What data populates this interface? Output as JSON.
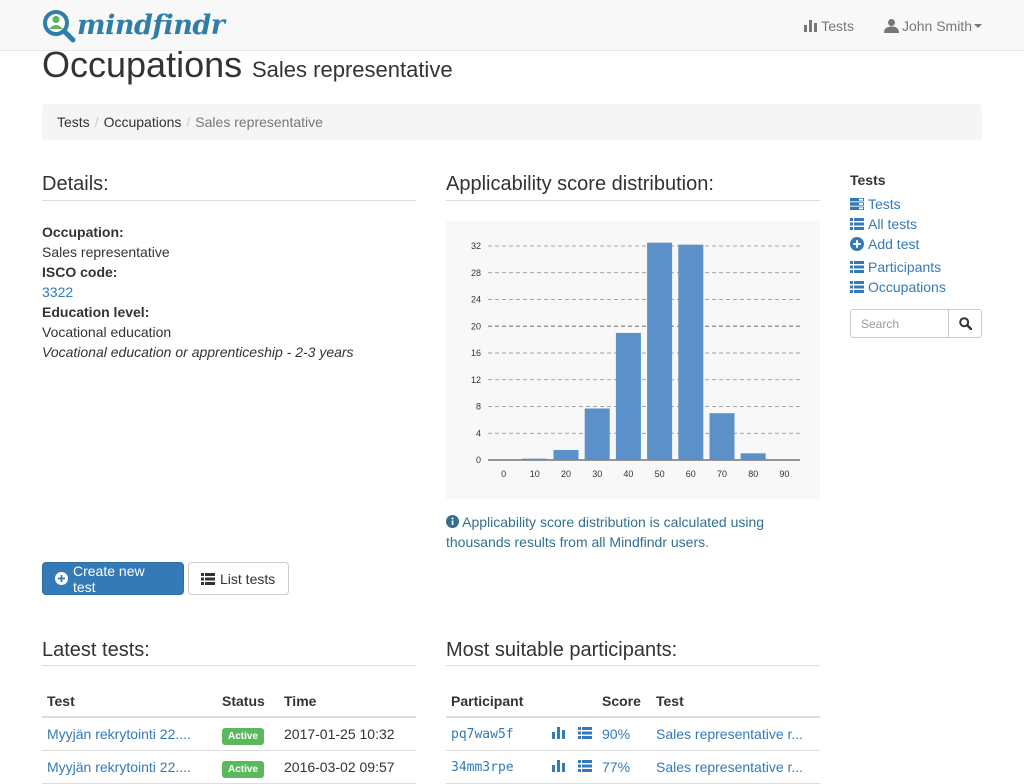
{
  "brand": {
    "name": "mindfindr"
  },
  "nav": {
    "tests_label": "Tests",
    "user_label": "John Smith"
  },
  "header": {
    "title": "Occupations",
    "subtitle": "Sales representative"
  },
  "breadcrumb": [
    "Tests",
    "Occupations",
    "Sales representative"
  ],
  "details": {
    "heading": "Details:",
    "occupation_label": "Occupation:",
    "occupation_value": "Sales representative",
    "isco_label": "ISCO code:",
    "isco_value": "3322",
    "education_label": "Education level:",
    "education_value": "Vocational education",
    "education_note": "Vocational education or apprenticeship - 2-3 years"
  },
  "chart_section": {
    "heading": "Applicability score distribution:",
    "info": "Applicability score distribution is calculated using thousands results from all Mindfindr users."
  },
  "chart_data": {
    "type": "bar",
    "categories": [
      "0",
      "10",
      "20",
      "30",
      "40",
      "50",
      "60",
      "70",
      "80",
      "90"
    ],
    "values": [
      0,
      0.2,
      1.5,
      7.7,
      19,
      32.5,
      32.2,
      7,
      1,
      0
    ],
    "ylim": [
      0,
      32
    ],
    "yticks": [
      0,
      4,
      8,
      12,
      16,
      20,
      24,
      28,
      32
    ],
    "bar_color": "#5b91c8",
    "grid": true
  },
  "buttons": {
    "create_label": "Create new test",
    "list_label": "List tests"
  },
  "sidebar": {
    "title": "Tests",
    "items": [
      {
        "label": "Tests",
        "icon": "tasks-icon"
      },
      {
        "label": "All tests",
        "icon": "list-icon"
      },
      {
        "label": "Add test",
        "icon": "plus-circle-icon"
      },
      {
        "label": "Participants",
        "icon": "list-icon"
      },
      {
        "label": "Occupations",
        "icon": "list-icon"
      }
    ],
    "search_placeholder": "Search"
  },
  "latest_tests": {
    "heading": "Latest tests:",
    "columns": [
      "Test",
      "Status",
      "Time"
    ],
    "rows": [
      {
        "test": "Myyjän rekrytointi 22....",
        "status": "Active",
        "time": "2017-01-25 10:32"
      },
      {
        "test": "Myyjän rekrytointi 22....",
        "status": "Active",
        "time": "2016-03-02 09:57"
      }
    ]
  },
  "participants": {
    "heading": "Most suitable participants:",
    "columns": [
      "Participant",
      "",
      "Score",
      "Test"
    ],
    "rows": [
      {
        "id": "pq7waw5f",
        "score": "90%",
        "test": "Sales representative r..."
      },
      {
        "id": "34mm3rpe",
        "score": "77%",
        "test": "Sales representative r..."
      }
    ]
  },
  "colors": {
    "primary": "#337ab7",
    "success": "#5cb85c",
    "info_text": "#31708f"
  }
}
